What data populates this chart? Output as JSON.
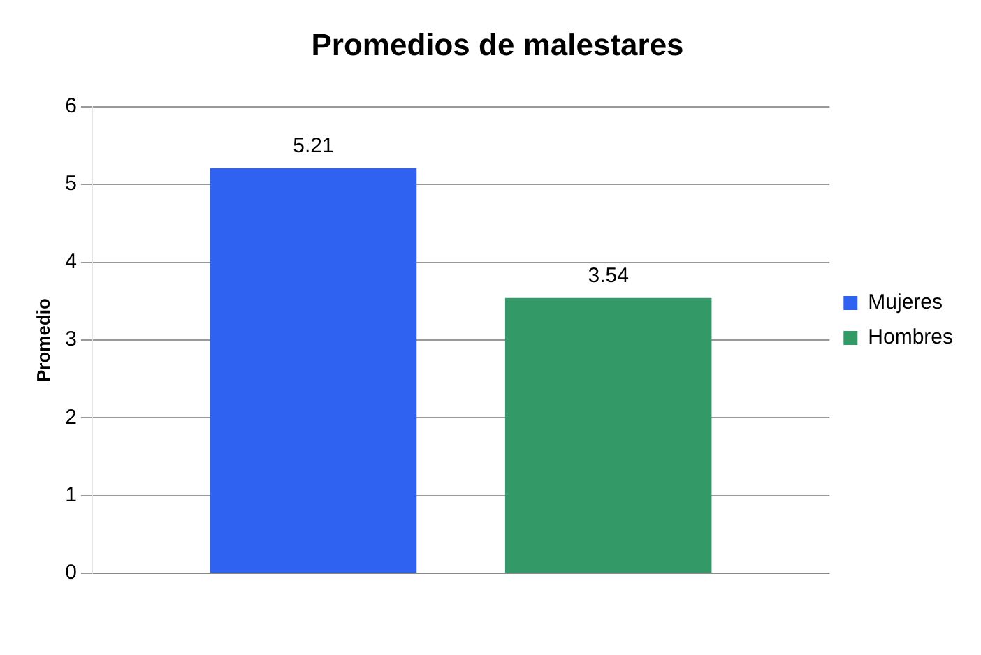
{
  "chart_data": {
    "type": "bar",
    "title": "Promedios de malestares",
    "ylabel": "Promedio",
    "categories": [
      null
    ],
    "series": [
      {
        "name": "Mujeres",
        "color": "#3062f2",
        "values": [
          5.21
        ]
      },
      {
        "name": "Hombres",
        "color": "#339966",
        "values": [
          3.54
        ]
      }
    ],
    "ylim": [
      0,
      6
    ],
    "yticks": [
      0,
      1,
      2,
      3,
      4,
      5,
      6
    ],
    "grid": "y",
    "legend": "right",
    "data_labels": true
  }
}
